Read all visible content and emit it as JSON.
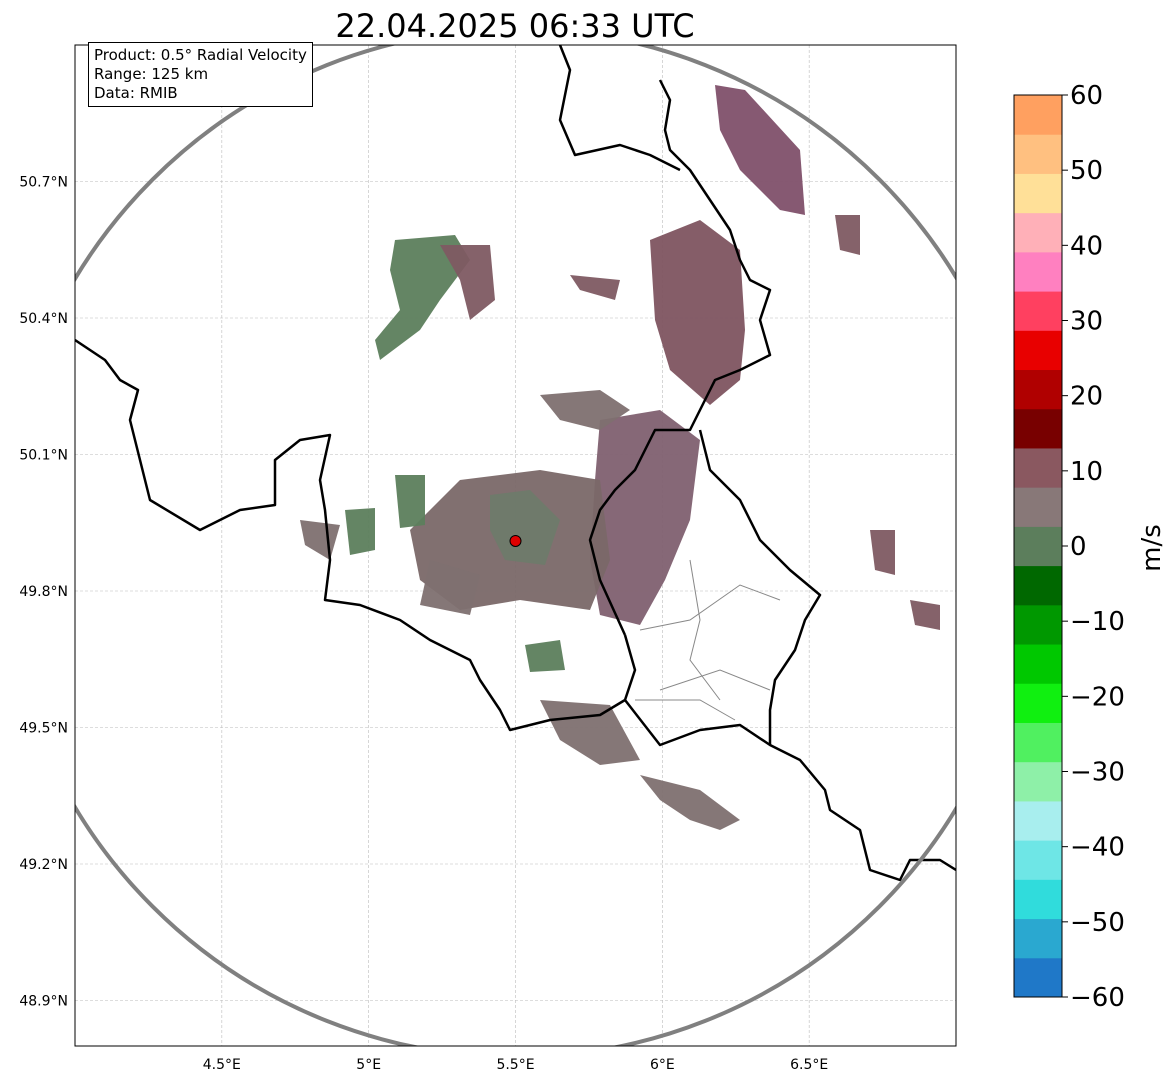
{
  "chart_data": {
    "type": "heatmap",
    "title": "22.04.2025 06:33 UTC",
    "info": {
      "product": "Product: 0.5° Radial Velocity",
      "range": "Range: 125 km",
      "data": "Data: RMIB"
    },
    "x_ticks": [
      "4.5°E",
      "5°E",
      "5.5°E",
      "6°E",
      "6.5°E"
    ],
    "x_tick_values": [
      4.5,
      5.0,
      5.5,
      6.0,
      6.5
    ],
    "y_ticks": [
      "50.7°N",
      "50.4°N",
      "50.1°N",
      "49.8°N",
      "49.5°N",
      "49.2°N",
      "48.9°N"
    ],
    "y_tick_values": [
      50.7,
      50.4,
      50.1,
      49.8,
      49.5,
      49.2,
      48.9
    ],
    "xlim": [
      4.0,
      7.0
    ],
    "ylim": [
      48.8,
      51.0
    ],
    "grid": true,
    "radar_site": {
      "lon": 5.5,
      "lat": 49.91
    },
    "range_km": 125,
    "colorbar": {
      "label": "m/s",
      "range": [
        -60,
        60
      ],
      "ticks": [
        "60",
        "50",
        "40",
        "30",
        "20",
        "10",
        "0",
        "−10",
        "−20",
        "−30",
        "−40",
        "−50",
        "−60"
      ],
      "tick_values": [
        60,
        50,
        40,
        30,
        20,
        10,
        0,
        -10,
        -20,
        -30,
        -40,
        -50,
        -60
      ],
      "colors": [
        "#1f78c8",
        "#2aa8d0",
        "#30dcdc",
        "#6ee6e6",
        "#a8eeee",
        "#8ef0a8",
        "#50f060",
        "#10f010",
        "#00c800",
        "#009800",
        "#006800",
        "#5c7e5c",
        "#887878",
        "#8a5860",
        "#780000",
        "#b00000",
        "#e80000",
        "#ff4060",
        "#ff80c0",
        "#ffb0b8",
        "#ffe098",
        "#ffc080",
        "#ffa060"
      ]
    }
  }
}
